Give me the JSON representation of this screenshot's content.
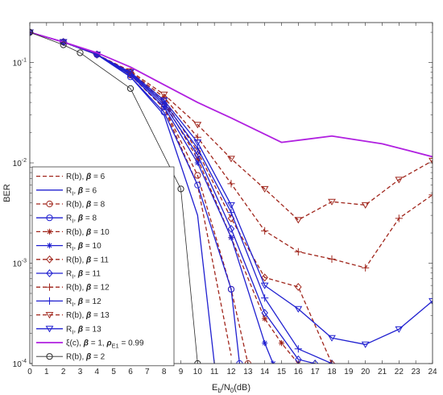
{
  "chart_data": {
    "type": "line",
    "title": "",
    "xlabel": "E_b/N_0(dB)",
    "ylabel": "BER",
    "xlim": [
      0,
      24
    ],
    "ylim": [
      0.0001,
      0.25
    ],
    "yscale": "log",
    "grid": false,
    "legend_position": "bottom-left",
    "x_ticks": [
      0,
      1,
      2,
      3,
      4,
      5,
      6,
      7,
      8,
      9,
      10,
      11,
      12,
      13,
      14,
      15,
      16,
      17,
      18,
      19,
      20,
      21,
      22,
      23,
      24
    ],
    "y_ticks": [
      {
        "value": 0.0001,
        "base": "10",
        "exp": "-4"
      },
      {
        "value": 0.001,
        "base": "10",
        "exp": "-3"
      },
      {
        "value": 0.01,
        "base": "10",
        "exp": "-2"
      },
      {
        "value": 0.1,
        "base": "10",
        "exp": "-1"
      }
    ],
    "series": [
      {
        "name": "R(b), β = 6",
        "color": "#a0261c",
        "dash": "dashed",
        "marker": "none",
        "x": [
          0,
          2,
          4,
          6,
          8,
          10,
          12
        ],
        "y": [
          0.2,
          0.16,
          0.12,
          0.075,
          0.035,
          0.006,
          0.00012
        ]
      },
      {
        "name": "R_I, β = 6",
        "color": "#2020d0",
        "dash": "solid",
        "marker": "none",
        "x": [
          0,
          2,
          4,
          6,
          8,
          10,
          11
        ],
        "y": [
          0.2,
          0.16,
          0.12,
          0.072,
          0.03,
          0.003,
          0.0001
        ]
      },
      {
        "name": "R(b), β = 8",
        "color": "#a0261c",
        "dash": "dashed",
        "marker": "circle",
        "x": [
          0,
          2,
          4,
          6,
          8,
          10,
          12,
          13
        ],
        "y": [
          0.2,
          0.16,
          0.12,
          0.075,
          0.036,
          0.0075,
          0.00055,
          0.0001
        ]
      },
      {
        "name": "R_I, β = 8",
        "color": "#2020d0",
        "dash": "solid",
        "marker": "circle",
        "x": [
          0,
          2,
          4,
          6,
          8,
          10,
          12,
          12.5
        ],
        "y": [
          0.2,
          0.16,
          0.12,
          0.072,
          0.032,
          0.006,
          0.00055,
          0.0001
        ]
      },
      {
        "name": "R(b), β = 10",
        "color": "#a0261c",
        "dash": "dashed",
        "marker": "star",
        "x": [
          0,
          2,
          4,
          6,
          8,
          10,
          12,
          14,
          15,
          16
        ],
        "y": [
          0.2,
          0.16,
          0.12,
          0.08,
          0.04,
          0.011,
          0.0018,
          0.00028,
          0.00016,
          0.0001
        ]
      },
      {
        "name": "R_I, β = 10",
        "color": "#2020d0",
        "dash": "solid",
        "marker": "star",
        "x": [
          0,
          2,
          4,
          6,
          8,
          10,
          12,
          14,
          14.5
        ],
        "y": [
          0.2,
          0.16,
          0.12,
          0.075,
          0.036,
          0.01,
          0.0018,
          0.00016,
          0.0001
        ]
      },
      {
        "name": "R(b), β = 11",
        "color": "#a0261c",
        "dash": "dashed",
        "marker": "diamond",
        "x": [
          0,
          2,
          4,
          6,
          8,
          10,
          12,
          14,
          16,
          18
        ],
        "y": [
          0.2,
          0.16,
          0.12,
          0.08,
          0.042,
          0.013,
          0.0028,
          0.00072,
          0.00058,
          0.0001
        ]
      },
      {
        "name": "R_I, β = 11",
        "color": "#2020d0",
        "dash": "solid",
        "marker": "diamond",
        "x": [
          0,
          2,
          4,
          6,
          8,
          10,
          12,
          14,
          16,
          17
        ],
        "y": [
          0.2,
          0.16,
          0.12,
          0.077,
          0.038,
          0.012,
          0.0022,
          0.00032,
          0.00011,
          0.0001
        ]
      },
      {
        "name": "R(b), β = 12",
        "color": "#a0261c",
        "dash": "dashed",
        "marker": "plus",
        "x": [
          0,
          2,
          4,
          6,
          8,
          10,
          12,
          14,
          16,
          18,
          20,
          22,
          24
        ],
        "y": [
          0.2,
          0.16,
          0.12,
          0.08,
          0.045,
          0.018,
          0.0062,
          0.0021,
          0.0013,
          0.0011,
          0.0009,
          0.0028,
          0.0048
        ]
      },
      {
        "name": "R_I, β = 12",
        "color": "#2020d0",
        "dash": "solid",
        "marker": "plus",
        "x": [
          0,
          2,
          4,
          6,
          8,
          10,
          12,
          14,
          16,
          18
        ],
        "y": [
          0.2,
          0.16,
          0.12,
          0.078,
          0.04,
          0.014,
          0.0032,
          0.00045,
          0.00014,
          0.0001
        ]
      },
      {
        "name": "R(b), β = 13",
        "color": "#a0261c",
        "dash": "dashed",
        "marker": "triangle-down",
        "x": [
          0,
          2,
          4,
          6,
          8,
          10,
          12,
          14,
          16,
          18,
          20,
          22,
          24
        ],
        "y": [
          0.2,
          0.16,
          0.12,
          0.082,
          0.048,
          0.024,
          0.011,
          0.0055,
          0.0027,
          0.0041,
          0.0038,
          0.0068,
          0.0105
        ]
      },
      {
        "name": "R_I, β = 13",
        "color": "#2020d0",
        "dash": "solid",
        "marker": "triangle-down",
        "x": [
          0,
          2,
          4,
          6,
          8,
          10,
          12,
          14,
          16,
          18,
          20,
          22,
          24
        ],
        "y": [
          0.2,
          0.16,
          0.12,
          0.08,
          0.042,
          0.016,
          0.0038,
          0.0006,
          0.00035,
          0.00018,
          0.000155,
          0.00022,
          0.00042
        ]
      },
      {
        "name": "ξ(c), β = 1, ρ_E1 = 0.99",
        "color": "#b020e0",
        "dash": "solid",
        "marker": "none",
        "x": [
          0,
          2,
          4,
          6,
          8,
          10,
          12,
          15,
          18,
          21,
          24
        ],
        "y": [
          0.2,
          0.16,
          0.125,
          0.09,
          0.06,
          0.04,
          0.028,
          0.016,
          0.0185,
          0.0155,
          0.0115
        ]
      },
      {
        "name": "R(b), β = 2",
        "color": "#2b2b2b",
        "dash": "solid",
        "marker": "circle",
        "x": [
          0,
          2,
          3,
          6,
          9,
          10
        ],
        "y": [
          0.2,
          0.15,
          0.125,
          0.055,
          0.0055,
          0.0001
        ]
      }
    ],
    "legend_entries": [
      {
        "parts": [
          [
            "R(b), ",
            "normal"
          ],
          [
            "β",
            "bold"
          ],
          [
            " = 6",
            "normal"
          ]
        ]
      },
      {
        "parts": [
          [
            "R",
            "normal"
          ],
          [
            "I",
            "sub"
          ],
          [
            ", ",
            "normal"
          ],
          [
            "β",
            "bold"
          ],
          [
            " = 6",
            "normal"
          ]
        ]
      },
      {
        "parts": [
          [
            "R(b), ",
            "normal"
          ],
          [
            "β",
            "bold"
          ],
          [
            " = 8",
            "normal"
          ]
        ]
      },
      {
        "parts": [
          [
            "R",
            "normal"
          ],
          [
            "I",
            "sub"
          ],
          [
            ", ",
            "normal"
          ],
          [
            "β",
            "bold"
          ],
          [
            " = 8",
            "normal"
          ]
        ]
      },
      {
        "parts": [
          [
            "R(b), ",
            "normal"
          ],
          [
            "β",
            "bold"
          ],
          [
            " = 10",
            "normal"
          ]
        ]
      },
      {
        "parts": [
          [
            "R",
            "normal"
          ],
          [
            "I",
            "sub"
          ],
          [
            ", ",
            "normal"
          ],
          [
            "β",
            "bold"
          ],
          [
            " = 10",
            "normal"
          ]
        ]
      },
      {
        "parts": [
          [
            "R(b), ",
            "normal"
          ],
          [
            "β",
            "bold"
          ],
          [
            " = 11",
            "normal"
          ]
        ]
      },
      {
        "parts": [
          [
            "R",
            "normal"
          ],
          [
            "I",
            "sub"
          ],
          [
            ", ",
            "normal"
          ],
          [
            "β",
            "bold"
          ],
          [
            " = 11",
            "normal"
          ]
        ]
      },
      {
        "parts": [
          [
            "R(b), ",
            "normal"
          ],
          [
            "β",
            "bold"
          ],
          [
            " = 12",
            "normal"
          ]
        ]
      },
      {
        "parts": [
          [
            "R",
            "normal"
          ],
          [
            "I",
            "sub"
          ],
          [
            ", ",
            "normal"
          ],
          [
            "β",
            "bold"
          ],
          [
            " = 12",
            "normal"
          ]
        ]
      },
      {
        "parts": [
          [
            "R(b), ",
            "normal"
          ],
          [
            "β",
            "bold"
          ],
          [
            " = 13",
            "normal"
          ]
        ]
      },
      {
        "parts": [
          [
            "R",
            "normal"
          ],
          [
            "I",
            "sub"
          ],
          [
            ", ",
            "normal"
          ],
          [
            "β",
            "bold"
          ],
          [
            " = 13",
            "normal"
          ]
        ]
      },
      {
        "parts": [
          [
            "ξ",
            "normal"
          ],
          [
            "(c), ",
            "normal"
          ],
          [
            "β",
            "bold"
          ],
          [
            " = 1, ",
            "normal"
          ],
          [
            "ρ",
            "bold"
          ],
          [
            "E1",
            "sub"
          ],
          [
            " = 0.99",
            "normal"
          ]
        ]
      },
      {
        "parts": [
          [
            "R(b), ",
            "normal"
          ],
          [
            "β",
            "bold"
          ],
          [
            " = 2",
            "normal"
          ]
        ]
      }
    ]
  }
}
